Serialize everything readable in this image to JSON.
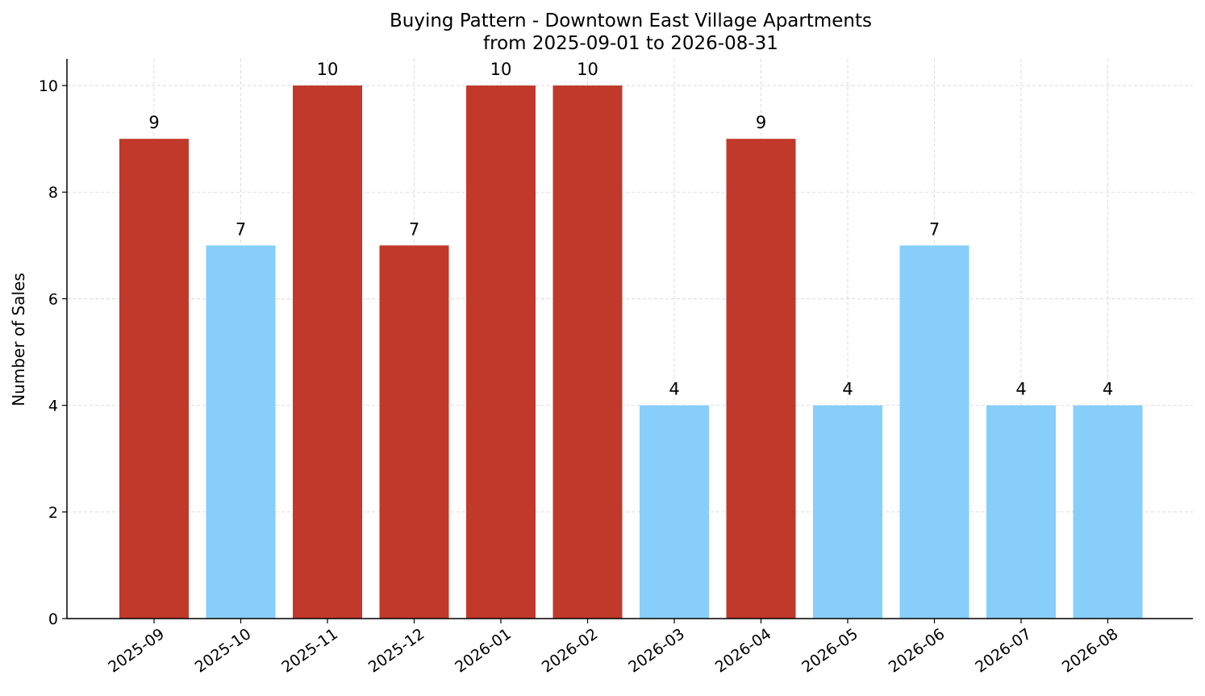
{
  "chart_data": {
    "type": "bar",
    "title_line1": "Buying Pattern - Downtown East Village Apartments",
    "title_line2": "from 2025-09-01 to 2026-08-31",
    "xlabel": "",
    "ylabel": "Number of Sales",
    "categories": [
      "2025-09",
      "2025-10",
      "2025-11",
      "2025-12",
      "2026-01",
      "2026-02",
      "2026-03",
      "2026-04",
      "2026-05",
      "2026-06",
      "2026-07",
      "2026-08"
    ],
    "values": [
      9,
      7,
      10,
      7,
      10,
      10,
      4,
      9,
      4,
      7,
      4,
      4
    ],
    "bar_colors": [
      "#c0392b",
      "#87cefa",
      "#c0392b",
      "#c0392b",
      "#c0392b",
      "#c0392b",
      "#87cefa",
      "#c0392b",
      "#87cefa",
      "#87cefa",
      "#87cefa",
      "#87cefa"
    ],
    "data_labels": [
      "9",
      "7",
      "10",
      "7",
      "10",
      "10",
      "4",
      "9",
      "4",
      "7",
      "4",
      "4"
    ],
    "yticks": [
      0,
      2,
      4,
      6,
      8,
      10
    ],
    "ytick_labels": [
      "0",
      "2",
      "4",
      "6",
      "8",
      "10"
    ],
    "ylim": [
      0,
      10.5
    ],
    "grid": true,
    "grid_color": "#d3d3d3",
    "axis_color": "#000000"
  }
}
